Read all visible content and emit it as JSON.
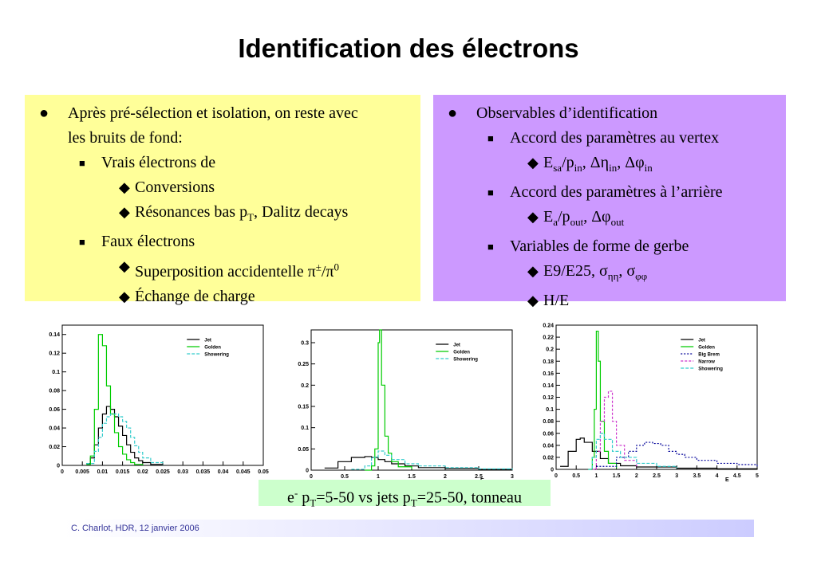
{
  "title": "Identification des électrons",
  "left_box": {
    "intro_line1": "Après pré-sélection et isolation, on reste avec",
    "intro_line2": "les bruits de fond:",
    "vrais": "Vrais électrons de",
    "conversions": "Conversions",
    "resonances_pre": "Résonances bas p",
    "resonances_sub": "T",
    "resonances_post": ", Dalitz decays",
    "faux": "Faux électrons",
    "superpos_pre": "Superposition accidentelle π",
    "superpos_sup": "±",
    "superpos_mid": "/π",
    "superpos_sup2": "0",
    "echange": "Échange de charge"
  },
  "right_box": {
    "observables": "Observables d’identification",
    "accord_vertex": "Accord des paramètres au vertex",
    "v_e": "E",
    "v_sa": "sa",
    "v_p": "/p",
    "v_in": "in",
    "v_deta": ", Δη",
    "v_in2": "in",
    "v_dphi": ", Δφ",
    "v_in3": "in",
    "accord_arriere": "Accord des paramètres à l’arrière",
    "a_e": "E",
    "a_a": "a",
    "a_p": "/p",
    "a_out": "out",
    "a_dphi": ", Δφ",
    "a_out2": "out",
    "variables": "Variables de forme de gerbe",
    "e9": "E9/E25, σ",
    "e9_sub": "ηη",
    "e9_mid": ", σ",
    "e9_sub2": "φφ",
    "he": "H/E"
  },
  "caption": {
    "pre": "e",
    "sup": "-",
    "mid": " p",
    "sub": "T",
    "mid2": "=5-50 vs jets p",
    "sub2": "T",
    "post": "=25-50, tonneau"
  },
  "footer": "C. Charlot, HDR, 12 janvier 2006",
  "colors": {
    "jet": "#000000",
    "golden": "#00cc00",
    "showering": "#33cccc",
    "bigbrem": "#000099",
    "narrow": "#cc33cc"
  },
  "chart_data": [
    {
      "type": "line",
      "xlim": [
        0,
        0.05
      ],
      "ylim": [
        0,
        0.15
      ],
      "xticks": [
        "0",
        "0.005",
        "0.01",
        "0.015",
        "0.02",
        "0.025",
        "0.03",
        "0.035",
        "0.04",
        "0.045",
        "0.05"
      ],
      "yticks": [
        "0",
        "0.02",
        "0.04",
        "0.06",
        "0.08",
        "0.1",
        "0.12",
        "0.14"
      ],
      "xlabel": "",
      "legend": "top-right",
      "series": [
        {
          "name": "Jet",
          "x": [
            0.006,
            0.007,
            0.008,
            0.009,
            0.01,
            0.011,
            0.012,
            0.013,
            0.014,
            0.015,
            0.016,
            0.017,
            0.018,
            0.019,
            0.02,
            0.022,
            0.025
          ],
          "y": [
            0.002,
            0.008,
            0.022,
            0.04,
            0.055,
            0.063,
            0.06,
            0.052,
            0.042,
            0.032,
            0.022,
            0.014,
            0.008,
            0.005,
            0.003,
            0.001,
            0.0
          ]
        },
        {
          "name": "Golden",
          "x": [
            0.006,
            0.007,
            0.008,
            0.009,
            0.01,
            0.011,
            0.012,
            0.013,
            0.014,
            0.015,
            0.016,
            0.017,
            0.018,
            0.02
          ],
          "y": [
            0.001,
            0.01,
            0.06,
            0.14,
            0.128,
            0.085,
            0.055,
            0.035,
            0.02,
            0.012,
            0.006,
            0.003,
            0.001,
            0.0
          ]
        },
        {
          "name": "Showering",
          "x": [
            0.006,
            0.008,
            0.009,
            0.01,
            0.011,
            0.012,
            0.013,
            0.014,
            0.015,
            0.016,
            0.017,
            0.018,
            0.019,
            0.02,
            0.022,
            0.025
          ],
          "y": [
            0.002,
            0.015,
            0.03,
            0.045,
            0.052,
            0.055,
            0.055,
            0.052,
            0.047,
            0.04,
            0.03,
            0.021,
            0.014,
            0.008,
            0.003,
            0.0
          ]
        }
      ]
    },
    {
      "type": "line",
      "xlim": [
        0,
        3
      ],
      "ylim": [
        0,
        0.33
      ],
      "xticks": [
        "0",
        "0.5",
        "1",
        "1.5",
        "2",
        "2.5",
        "3"
      ],
      "yticks": [
        "0",
        "0.05",
        "0.1",
        "0.15",
        "0.2",
        "0.25",
        "0.3"
      ],
      "xlabel": "E",
      "legend": "top-right",
      "series": [
        {
          "name": "Jet",
          "x": [
            0.2,
            0.4,
            0.6,
            0.8,
            0.9,
            1.0,
            1.1,
            1.2,
            1.4,
            1.6,
            2.0,
            2.5,
            3.0
          ],
          "y": [
            0.005,
            0.02,
            0.03,
            0.032,
            0.03,
            0.025,
            0.02,
            0.015,
            0.01,
            0.006,
            0.004,
            0.002,
            0.001
          ]
        },
        {
          "name": "Golden",
          "x": [
            0.8,
            0.9,
            0.95,
            1.0,
            1.02,
            1.05,
            1.1,
            1.15,
            1.2,
            1.3,
            1.5
          ],
          "y": [
            0.0,
            0.01,
            0.05,
            0.3,
            0.33,
            0.2,
            0.08,
            0.04,
            0.02,
            0.008,
            0.002
          ]
        },
        {
          "name": "Showering",
          "x": [
            0.6,
            0.8,
            0.9,
            1.0,
            1.1,
            1.2,
            1.4,
            1.6,
            2.0,
            2.5,
            3.0
          ],
          "y": [
            0.002,
            0.01,
            0.03,
            0.045,
            0.035,
            0.025,
            0.015,
            0.01,
            0.006,
            0.003,
            0.001
          ]
        }
      ]
    },
    {
      "type": "line",
      "xlim": [
        0,
        5
      ],
      "ylim": [
        0,
        0.24
      ],
      "xticks": [
        "0",
        "0.5",
        "1",
        "1.5",
        "2",
        "2.5",
        "3",
        "3.5",
        "4",
        "4.5",
        "5"
      ],
      "yticks": [
        "0",
        "0.02",
        "0.04",
        "0.06",
        "0.08",
        "0.1",
        "0.12",
        "0.14",
        "0.16",
        "0.18",
        "0.2",
        "0.22",
        "0.24"
      ],
      "xlabel": "E",
      "legend": "top-right",
      "series": [
        {
          "name": "Jet",
          "x": [
            0.1,
            0.3,
            0.5,
            0.6,
            0.7,
            0.9,
            1.1,
            1.3,
            1.6,
            2.0,
            3.0,
            4.0,
            5.0
          ],
          "y": [
            0.005,
            0.03,
            0.05,
            0.052,
            0.045,
            0.03,
            0.018,
            0.01,
            0.006,
            0.004,
            0.002,
            0.001,
            0.0
          ]
        },
        {
          "name": "Golden",
          "x": [
            0.8,
            0.9,
            0.95,
            1.0,
            1.05,
            1.1,
            1.2,
            1.3,
            1.5
          ],
          "y": [
            0.0,
            0.02,
            0.1,
            0.23,
            0.18,
            0.08,
            0.03,
            0.01,
            0.002
          ]
        },
        {
          "name": "Big Brem",
          "x": [
            1.0,
            1.5,
            1.8,
            2.0,
            2.2,
            2.4,
            2.6,
            2.8,
            3.0,
            3.2,
            3.5,
            4.0,
            4.5,
            5.0
          ],
          "y": [
            0.005,
            0.02,
            0.03,
            0.04,
            0.045,
            0.043,
            0.04,
            0.03,
            0.025,
            0.02,
            0.015,
            0.01,
            0.008,
            0.005
          ]
        },
        {
          "name": "Narrow",
          "x": [
            0.9,
            1.0,
            1.1,
            1.2,
            1.3,
            1.4,
            1.5,
            1.7,
            2.0
          ],
          "y": [
            0.0,
            0.03,
            0.08,
            0.12,
            0.13,
            0.08,
            0.04,
            0.015,
            0.005
          ]
        },
        {
          "name": "Showering",
          "x": [
            0.8,
            0.9,
            1.0,
            1.1,
            1.2,
            1.4,
            1.6,
            2.0,
            2.5,
            3.0
          ],
          "y": [
            0.0,
            0.02,
            0.05,
            0.06,
            0.05,
            0.03,
            0.02,
            0.01,
            0.005,
            0.002
          ]
        }
      ]
    }
  ]
}
